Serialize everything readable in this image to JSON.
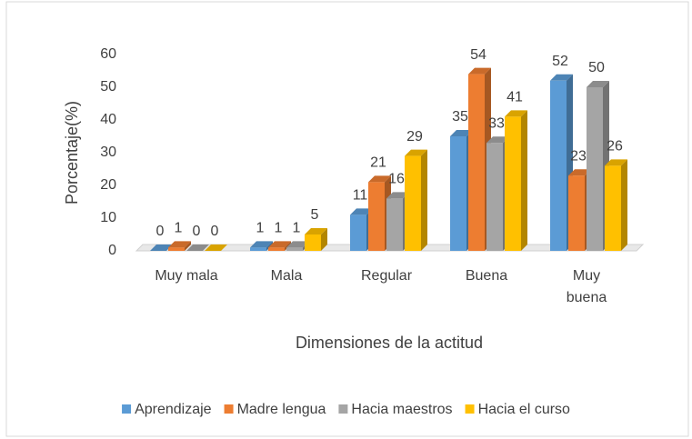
{
  "chart_data": {
    "type": "bar3d",
    "x_label": "Dimensiones de la actitud",
    "y_label": "Porcentaje(%)",
    "categories": [
      "Muy mala",
      "Mala",
      "Regular",
      "Buena",
      "Muy buena"
    ],
    "series": [
      {
        "name": "Aprendizaje",
        "color": "#5b9bd5",
        "values": [
          0,
          1,
          11,
          35,
          52
        ]
      },
      {
        "name": "Madre lengua",
        "color": "#ed7d31",
        "values": [
          1,
          1,
          21,
          54,
          23
        ]
      },
      {
        "name": "Hacia maestros",
        "color": "#a5a5a5",
        "values": [
          0,
          1,
          16,
          33,
          50
        ]
      },
      {
        "name": "Hacia el curso",
        "color": "#ffc000",
        "values": [
          0,
          5,
          29,
          41,
          26
        ]
      }
    ],
    "ylim": [
      0,
      60
    ],
    "yticks": [
      0,
      10,
      20,
      30,
      40,
      50,
      60
    ],
    "legend": "bottom"
  }
}
